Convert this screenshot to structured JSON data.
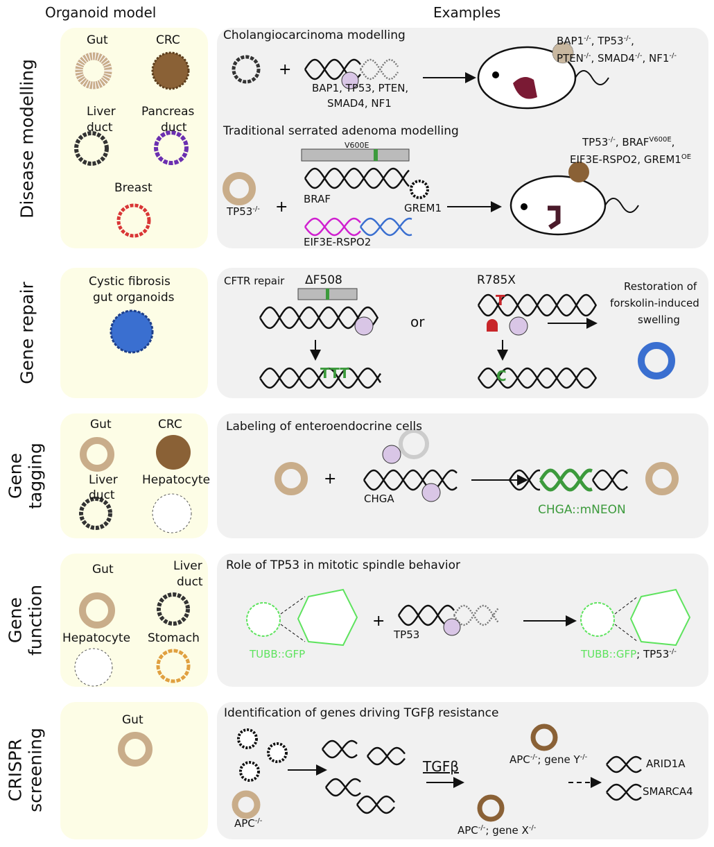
{
  "headers": {
    "left": "Organoid model",
    "right": "Examples"
  },
  "rows": [
    {
      "label": "Disease modelling",
      "models": [
        "Gut",
        "CRC",
        "Liver",
        "duct",
        "Pancreas",
        "duct",
        "Breast"
      ],
      "ex1": {
        "title": "Cholangiocarcinoma modelling",
        "genes1": "BAP1, TP53, PTEN,",
        "genes2": "SMAD4, NF1",
        "result1": [
          [
            "BAP1",
            "-/-"
          ],
          [
            ", TP53",
            "-/-"
          ],
          [
            ",",
            ""
          ]
        ],
        "result2": [
          [
            "PTEN",
            "-/-"
          ],
          [
            ", SMAD4",
            "-/-"
          ],
          [
            ", NF1",
            "-/-"
          ]
        ]
      },
      "ex2": {
        "title": "Traditional serrated adenoma modelling",
        "mutation": "V600E",
        "gene": "BRAF",
        "fusion": "EIF3E-RSPO2",
        "virus": "GREM1",
        "organoid": [
          [
            "TP53",
            "-/-"
          ]
        ],
        "result1": [
          [
            "TP53",
            "-/-"
          ],
          [
            ", BRAF",
            "V600E"
          ],
          [
            ",",
            ""
          ]
        ],
        "result2": [
          [
            "EIF3E-RSPO2, GREM1",
            "OE"
          ]
        ]
      }
    },
    {
      "label": "Gene repair",
      "models": [
        "Cystic fibrosis",
        "gut organoids"
      ],
      "title": "CFTR repair",
      "mut1": "ΔF508",
      "fix1": "TTT",
      "or": "or",
      "mut2": "R785X",
      "mut2_base": "T",
      "fix2": "C",
      "result": [
        "Restoration of",
        "forskolin-induced",
        "swelling"
      ]
    },
    {
      "label": "Gene tagging",
      "label_lines": [
        "Gene",
        "tagging"
      ],
      "models": [
        "Gut",
        "CRC",
        "Liver",
        "duct",
        "Hepatocyte"
      ],
      "title": "Labeling of enteroendocrine cells",
      "gene": "CHGA",
      "product": "CHGA::mNEON"
    },
    {
      "label": "Gene function",
      "label_lines": [
        "Gene",
        "function"
      ],
      "models": [
        "Gut",
        "Liver",
        "duct",
        "Hepatocyte",
        "Stomach"
      ],
      "title": "Role of TP53 in mitotic spindle behavior",
      "reporter": "TUBB::GFP",
      "gene": "TP53",
      "result_reporter": "TUBB::GFP",
      "result_gene": [
        [
          "; TP53",
          "-/-"
        ]
      ]
    },
    {
      "label": "CRISPR screening",
      "label_lines": [
        "CRISPR",
        "screening"
      ],
      "models": [
        "Gut"
      ],
      "title": "Identification of genes driving TGFβ resistance",
      "organoid": [
        [
          "APC",
          "-/-"
        ]
      ],
      "treatment": "TGFβ",
      "cloneY": [
        [
          "APC",
          "-/-"
        ],
        [
          "; gene Y",
          "-/-"
        ]
      ],
      "cloneX": [
        [
          "APC",
          "-/-"
        ],
        [
          "; gene X",
          "-/-"
        ]
      ],
      "hits": [
        "ARID1A",
        "SMARCA4"
      ]
    }
  ],
  "colors": {
    "model_bg": "#fdfde6",
    "example_bg": "#f1f1f1",
    "cas9": "#d9c6e6",
    "green": "#3c9a3c",
    "gfp": "#5ee35e",
    "blue": "#3a6fd0",
    "tumor": "#7a1a34"
  }
}
